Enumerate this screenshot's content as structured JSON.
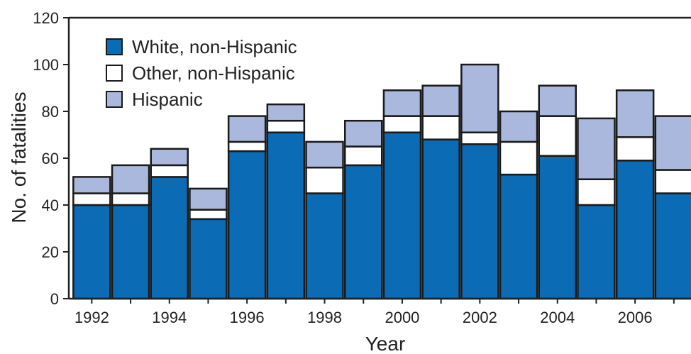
{
  "chart_data": {
    "type": "bar",
    "stacked": true,
    "xlabel": "Year",
    "ylabel": "No. of fatalities",
    "ylim": [
      0,
      120
    ],
    "yticks": [
      0,
      20,
      40,
      60,
      80,
      100,
      120
    ],
    "categories": [
      "1992",
      "1993",
      "1994",
      "1995",
      "1996",
      "1997",
      "1998",
      "1999",
      "2000",
      "2001",
      "2002",
      "2003",
      "2004",
      "2005",
      "2006",
      "2007"
    ],
    "tick_labels": [
      "1992",
      "",
      "1994",
      "",
      "1996",
      "",
      "1998",
      "",
      "2000",
      "",
      "2002",
      "",
      "2004",
      "",
      "2006",
      ""
    ],
    "series": [
      {
        "name": "White, non-Hispanic",
        "color": "#0b6bb5",
        "values": [
          40,
          40,
          52,
          34,
          63,
          71,
          45,
          57,
          71,
          68,
          66,
          53,
          61,
          40,
          59,
          45
        ]
      },
      {
        "name": "Other, non-Hispanic",
        "color": "#ffffff",
        "values": [
          5,
          5,
          5,
          4,
          4,
          5,
          11,
          8,
          7,
          10,
          5,
          14,
          17,
          11,
          10,
          10
        ]
      },
      {
        "name": "Hispanic",
        "color": "#aab8dd",
        "values": [
          7,
          12,
          7,
          9,
          11,
          7,
          11,
          11,
          11,
          13,
          29,
          13,
          13,
          26,
          20,
          23
        ]
      }
    ],
    "legend_position": "top-left",
    "grid": false
  }
}
